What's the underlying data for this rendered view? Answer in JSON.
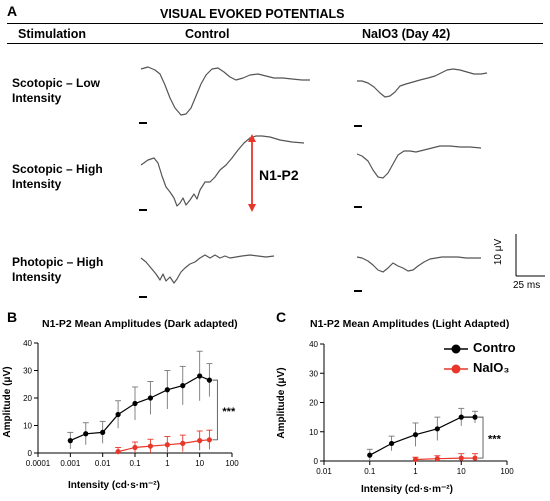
{
  "panel_a": {
    "letter": "A",
    "title": "VISUAL EVOKED POTENTIALS",
    "col_stimulation": "Stimulation",
    "col_control": "Control",
    "col_nalo3": "NaIO3 (Day 42)",
    "rows": [
      {
        "line1": "Scotopic – Low",
        "line2": "Intensity"
      },
      {
        "line1": "Scotopic – High",
        "line2": "Intensity"
      },
      {
        "line1": "Photopic – High",
        "line2": "Intensity"
      }
    ],
    "n1p2_label": "N1-P2",
    "scale_y": "10 μV",
    "scale_x": "25 ms",
    "arrow_color": "#e8372a"
  },
  "chart_data": [
    {
      "letter": "B",
      "type": "line",
      "title": "N1-P2 Mean Amplitudes (Dark adapted)",
      "xlabel": "Intensity (cd·s·m⁻²)",
      "ylabel": "Amplitude (μV)",
      "xscale": "log",
      "xlim": [
        0.0001,
        100
      ],
      "ylim": [
        0,
        40
      ],
      "xticks": [
        "0.0001",
        "0.001",
        "0.01",
        "0.1",
        "1",
        "10",
        "100"
      ],
      "yticks": [
        "0",
        "10",
        "20",
        "30",
        "40"
      ],
      "significance": "***",
      "series": [
        {
          "color": "#000000",
          "x": [
            0.001,
            0.003,
            0.01,
            0.03,
            0.1,
            0.3,
            1,
            3,
            10,
            20
          ],
          "y": [
            4.5,
            7,
            7.5,
            14,
            18,
            20,
            23,
            24.5,
            28,
            26.5
          ],
          "err": [
            3,
            4,
            4,
            5,
            6,
            6,
            7,
            7,
            9,
            6
          ]
        },
        {
          "color": "#e8372a",
          "x": [
            0.03,
            0.1,
            0.3,
            1,
            3,
            10,
            20
          ],
          "y": [
            0.5,
            2,
            2.5,
            3,
            3.5,
            4.5,
            4.8
          ],
          "err": [
            1.5,
            2,
            2.5,
            3,
            3,
            3.5,
            3.5
          ]
        }
      ]
    },
    {
      "letter": "C",
      "type": "line",
      "title": "N1-P2 Mean Amplitudes (Light Adapted)",
      "xlabel": "Intensity (cd·s·m⁻²)",
      "ylabel": "Amplitude (μV)",
      "xscale": "log",
      "xlim": [
        0.01,
        100
      ],
      "ylim": [
        0,
        40
      ],
      "xticks": [
        "0.01",
        "0.1",
        "1",
        "10",
        "100"
      ],
      "yticks": [
        "0",
        "10",
        "20",
        "30",
        "40"
      ],
      "significance": "***",
      "legend": [
        {
          "label": "Contro",
          "color": "#000000"
        },
        {
          "label": "NaIO₃",
          "color": "#e8372a"
        }
      ],
      "series": [
        {
          "color": "#000000",
          "x": [
            0.1,
            0.3,
            1,
            3,
            10,
            20
          ],
          "y": [
            2,
            6,
            9,
            11,
            15,
            15
          ],
          "err": [
            2,
            2.5,
            4,
            4,
            3,
            2
          ]
        },
        {
          "color": "#e8372a",
          "x": [
            1,
            3,
            10,
            20
          ],
          "y": [
            0.5,
            0.8,
            1,
            1
          ],
          "err": [
            0.8,
            1,
            1.5,
            1.5
          ]
        }
      ]
    }
  ]
}
